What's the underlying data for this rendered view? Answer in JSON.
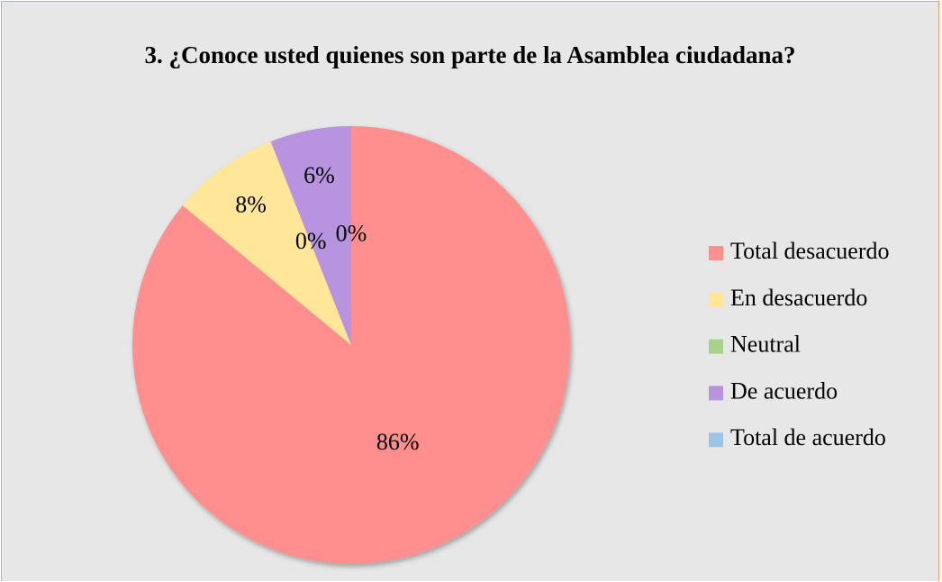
{
  "chart_data": {
    "type": "pie",
    "title": "3. ¿Conoce usted quienes son parte de la Asamblea ciudadana?",
    "categories": [
      "Total desacuerdo",
      "En desacuerdo",
      "Neutral",
      "De acuerdo",
      "Total de acuerdo"
    ],
    "values": [
      86,
      8,
      0,
      6,
      0
    ],
    "value_labels": [
      "86%",
      "8%",
      "0%",
      "6%",
      "0%"
    ],
    "colors": [
      "#ff8f8f",
      "#ffe699",
      "#a9d18e",
      "#b894e0",
      "#9dc3e6"
    ],
    "legend": "right"
  }
}
